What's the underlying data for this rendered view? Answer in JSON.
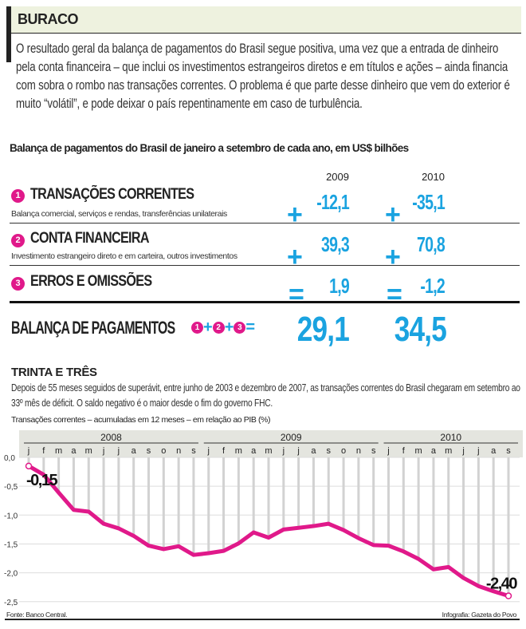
{
  "header": {
    "title": "BURACO"
  },
  "intro": "O resultado geral da balança de pagamentos do Brasil segue positiva, uma vez que a entrada de dinheiro pela conta financeira – que inclui os investimentos estrangeiros diretos e em títulos e ações – ainda financia com sobra o rombo nas transações correntes. O problema é que parte desse dinheiro que vem do exterior é muito “volátil”, e pode deixar o país repentinamente em caso de turbulência.",
  "table": {
    "subtitle": "Balança de pagamentos do Brasil de janeiro a setembro de cada ano, em US$ bilhões",
    "years": [
      "2009",
      "2010"
    ],
    "rows": [
      {
        "num": "1",
        "title": "TRANSAÇÕES CORRENTES",
        "desc": "Balança comercial, serviços e rendas, transferências unilaterais",
        "op": "+",
        "values": [
          "-12,1",
          "-35,1"
        ]
      },
      {
        "num": "2",
        "title": "CONTA FINANCEIRA",
        "desc": "Investimento estrangeiro direto e em carteira, outros investimentos",
        "op": "+",
        "values": [
          "39,3",
          "70,8"
        ]
      },
      {
        "num": "3",
        "title": "ERROS E OMISSÕES",
        "desc": "",
        "op": "=",
        "values": [
          "1,9",
          "-1,2"
        ]
      }
    ],
    "total": {
      "title": "BALANÇA DE PAGAMENTOS",
      "formula_ops": [
        "+",
        "+",
        "="
      ],
      "values": [
        "29,1",
        "34,5"
      ]
    }
  },
  "section2": {
    "title": "TRINTA E TRÊS",
    "text": "Depois de 55 meses seguidos de superávit, entre junho de 2003 e dezembro de 2007, as transações correntes do Brasil chegaram em setembro ao 33º mês de déficit. O saldo negativo é o maior desde o fim do governo FHC."
  },
  "chart_data": {
    "type": "line",
    "title": "Transações correntes – acumuladas em 12 meses – em relação ao PIB (%)",
    "years": [
      "2008",
      "2009",
      "2010"
    ],
    "month_labels": [
      "j",
      "f",
      "m",
      "a",
      "m",
      "j",
      "j",
      "a",
      "s",
      "o",
      "n",
      "s",
      "j",
      "f",
      "m",
      "a",
      "m",
      "j",
      "j",
      "a",
      "s",
      "o",
      "n",
      "s",
      "j",
      "f",
      "m",
      "a",
      "m",
      "j",
      "j",
      "a",
      "s"
    ],
    "values": [
      -0.15,
      -0.3,
      -0.61,
      -0.91,
      -0.94,
      -1.15,
      -1.23,
      -1.36,
      -1.53,
      -1.59,
      -1.54,
      -1.69,
      -1.66,
      -1.62,
      -1.49,
      -1.3,
      -1.39,
      -1.25,
      -1.22,
      -1.19,
      -1.15,
      -1.26,
      -1.4,
      -1.52,
      -1.53,
      -1.63,
      -1.76,
      -1.94,
      -1.9,
      -2.09,
      -2.23,
      -2.32,
      -2.4
    ],
    "ylim": [
      -2.5,
      0
    ],
    "yticks": [
      "0,0",
      "-0,5",
      "-1,0",
      "-1,5",
      "-2,0",
      "-2,5"
    ],
    "annotations": [
      "-0,15",
      "-2,40"
    ],
    "line_color": "#e0198a",
    "grid": true
  },
  "footer": {
    "source": "Fonte: Banco Central.",
    "credit": "Infografia: Gazeta do Povo"
  },
  "colors": {
    "accent_blue": "#1aa3e0",
    "accent_pink": "#e0198a",
    "header_bg": "#eef2df"
  }
}
